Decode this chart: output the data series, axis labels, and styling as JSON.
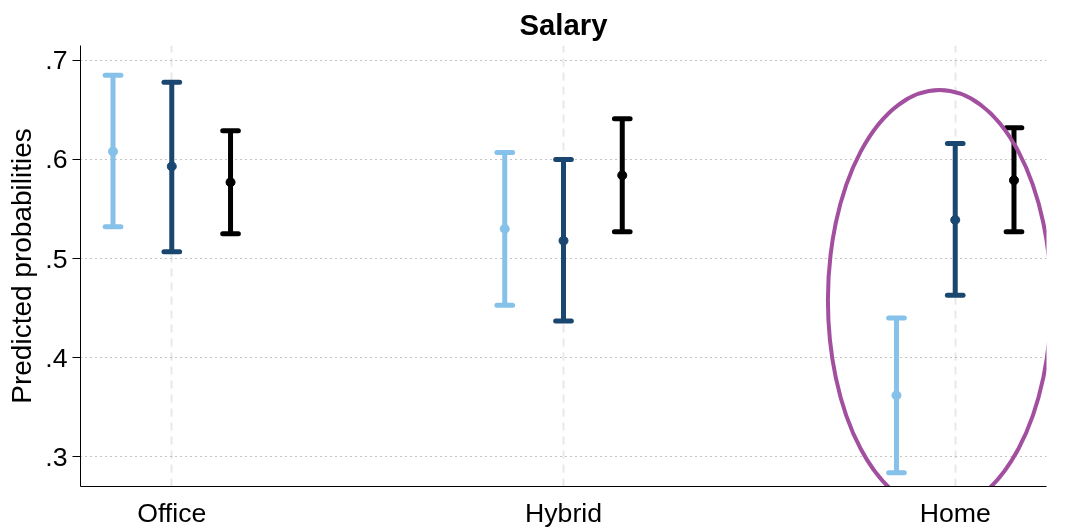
{
  "chart_data": {
    "type": "scatter",
    "title": "Salary",
    "ylabel": "Predicted probabilities",
    "categories": [
      "Office",
      "Hybrid",
      "Home"
    ],
    "series": [
      {
        "color": "#85c1e9",
        "values": [
          0.608,
          0.53,
          0.362
        ],
        "errors": [
          [
            0.532,
            0.685
          ],
          [
            0.453,
            0.607
          ],
          [
            0.284,
            0.44
          ]
        ]
      },
      {
        "color": "#1a476f",
        "values": [
          0.593,
          0.518,
          0.539
        ],
        "errors": [
          [
            0.507,
            0.678
          ],
          [
            0.437,
            0.6
          ],
          [
            0.463,
            0.616
          ]
        ]
      },
      {
        "color": "#000000",
        "values": [
          0.577,
          0.584,
          0.579
        ],
        "errors": [
          [
            0.525,
            0.629
          ],
          [
            0.527,
            0.641
          ],
          [
            0.527,
            0.632
          ]
        ]
      }
    ],
    "ylim": [
      0.27,
      0.715
    ],
    "yticks": [
      {
        "value": 0.3,
        "label": ".3"
      },
      {
        "value": 0.4,
        "label": ".4"
      },
      {
        "value": 0.5,
        "label": ".5"
      },
      {
        "value": 0.6,
        "label": ".6"
      },
      {
        "value": 0.7,
        "label": ".7"
      }
    ],
    "grid": true,
    "marker": "circle"
  }
}
